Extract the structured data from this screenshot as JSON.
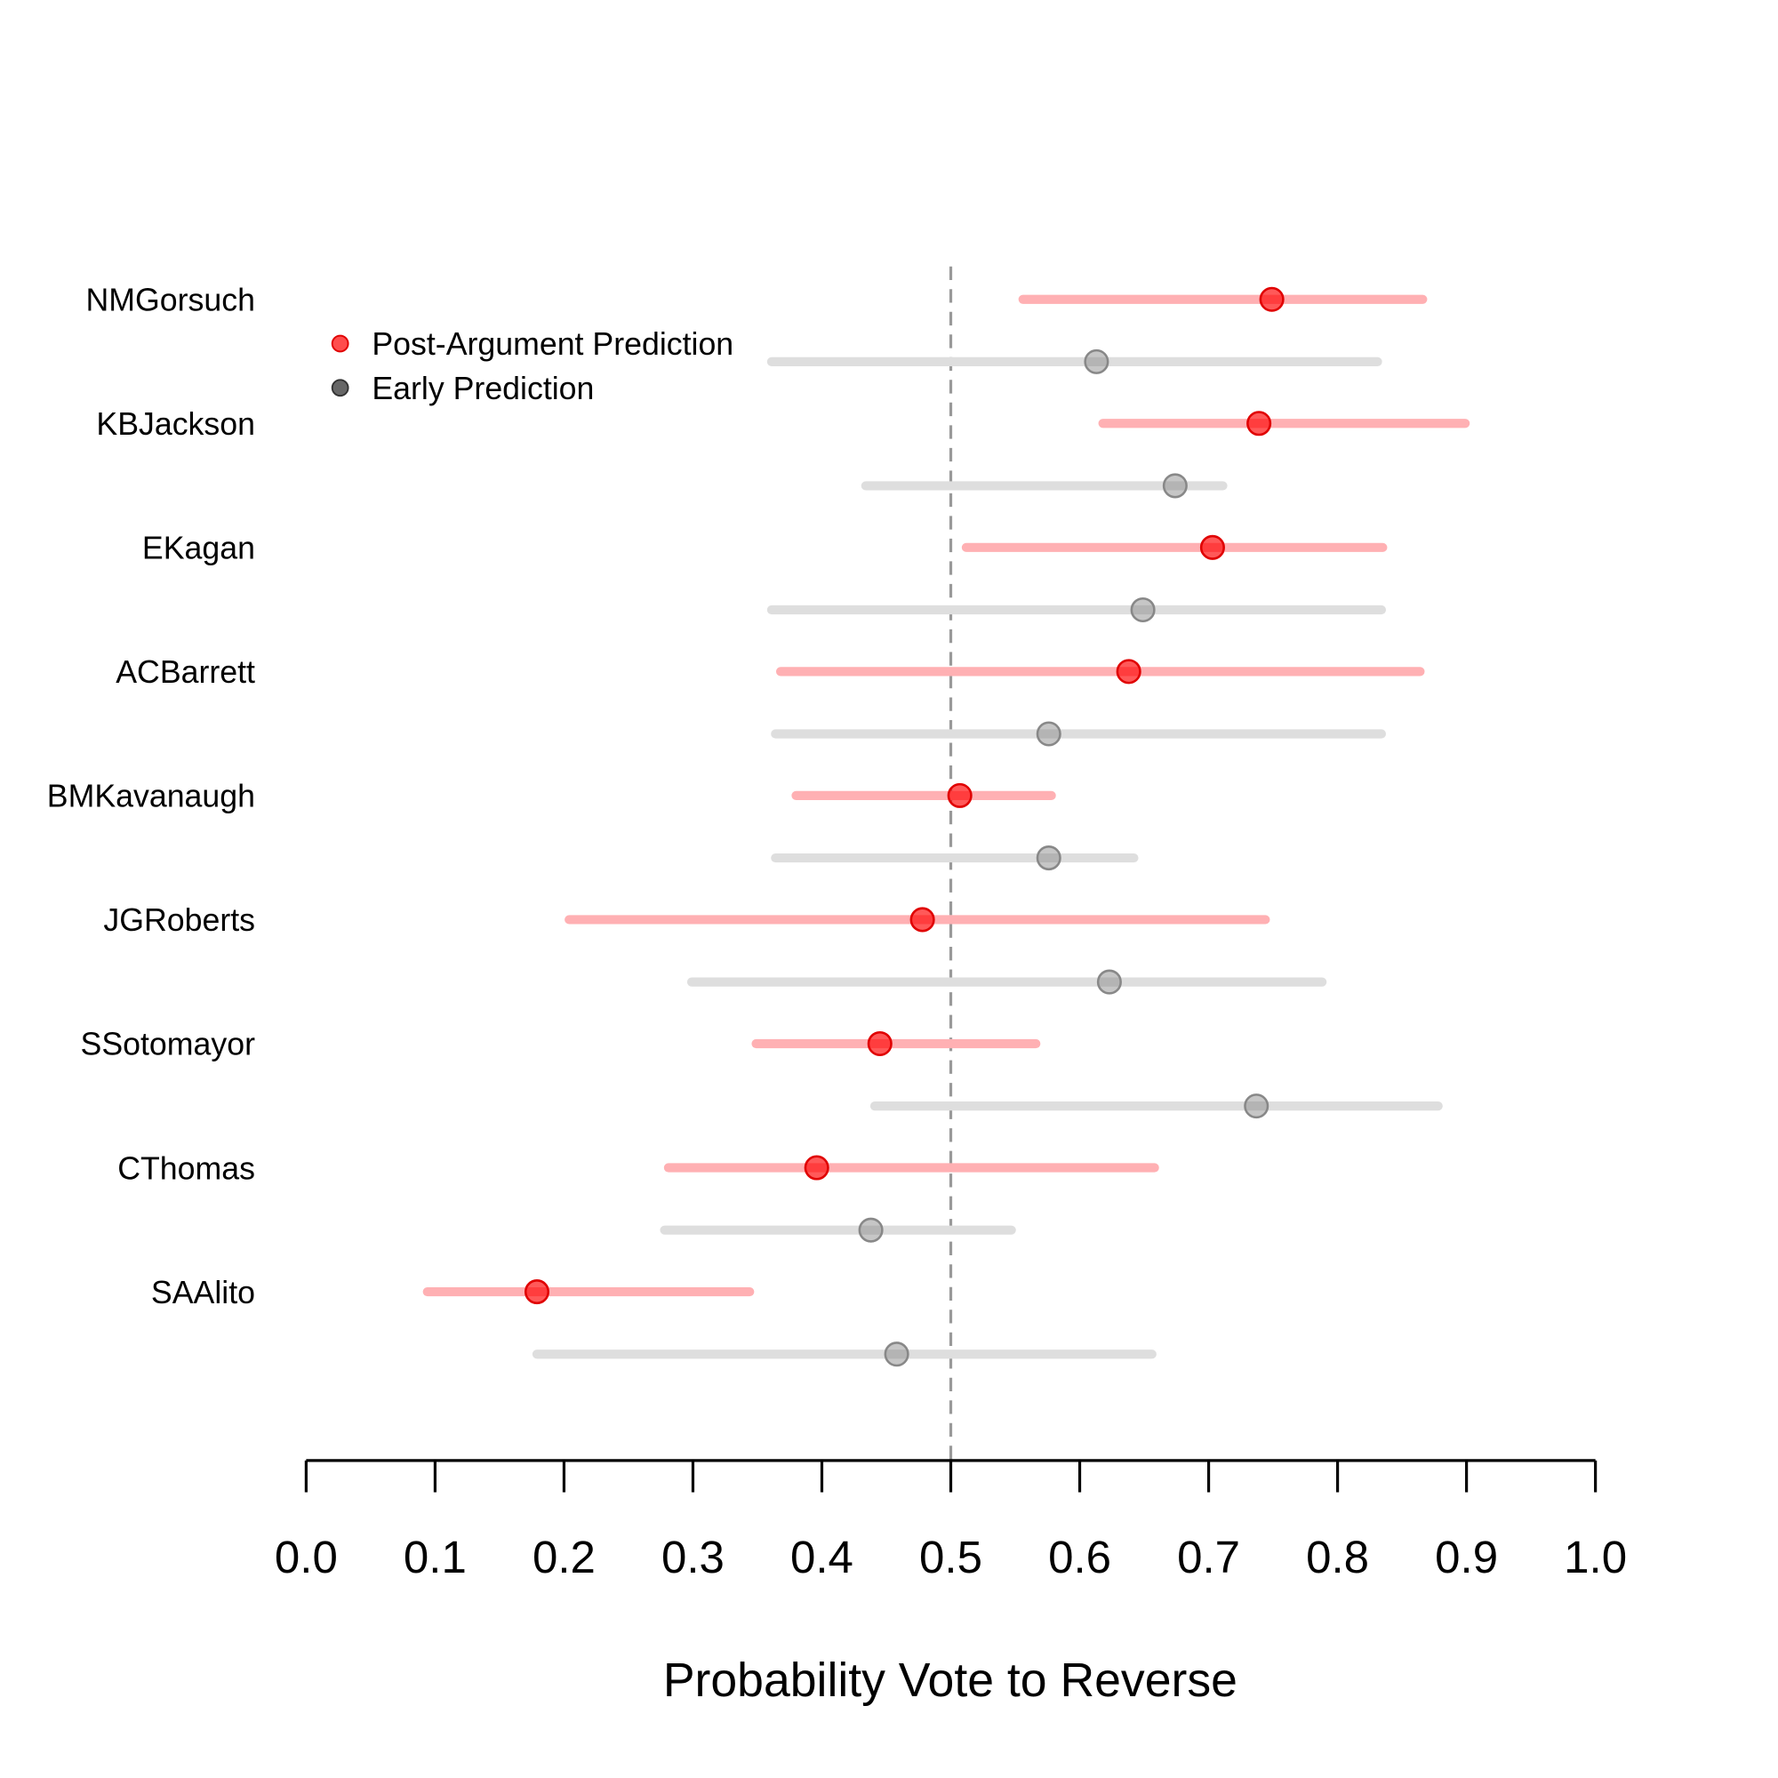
{
  "chart_data": {
    "type": "scatter",
    "subtype": "dot-and-interval",
    "title": "",
    "xlabel": "Probability Vote to Reverse",
    "ylabel": "",
    "xlim": [
      0,
      1
    ],
    "xticks": [
      "0.0",
      "0.1",
      "0.2",
      "0.3",
      "0.4",
      "0.5",
      "0.6",
      "0.7",
      "0.8",
      "0.9",
      "1.0"
    ],
    "reference_line": 0.5,
    "grid": false,
    "legend_placement": "top-left",
    "colors": {
      "post": "#ff0000",
      "early": "#808080",
      "post_interval": "#ffb0b3",
      "early_interval": "#dedede"
    },
    "legend": [
      {
        "name": "Post-Argument Prediction",
        "color": "#ff4d4d"
      },
      {
        "name": "Early Prediction",
        "color": "#666666"
      }
    ],
    "justices": [
      {
        "name": "NMGorsuch",
        "post": {
          "est": 0.749,
          "lo": 0.556,
          "hi": 0.866
        },
        "early": {
          "est": 0.613,
          "lo": 0.361,
          "hi": 0.831
        }
      },
      {
        "name": "KBJackson",
        "post": {
          "est": 0.739,
          "lo": 0.618,
          "hi": 0.899
        },
        "early": {
          "est": 0.674,
          "lo": 0.434,
          "hi": 0.711
        }
      },
      {
        "name": "EKagan",
        "post": {
          "est": 0.703,
          "lo": 0.512,
          "hi": 0.835
        },
        "early": {
          "est": 0.649,
          "lo": 0.361,
          "hi": 0.834
        }
      },
      {
        "name": "ACBarrett",
        "post": {
          "est": 0.638,
          "lo": 0.368,
          "hi": 0.864
        },
        "early": {
          "est": 0.576,
          "lo": 0.364,
          "hi": 0.834
        }
      },
      {
        "name": "BMKavanaugh",
        "post": {
          "est": 0.507,
          "lo": 0.38,
          "hi": 0.578
        },
        "early": {
          "est": 0.576,
          "lo": 0.364,
          "hi": 0.642
        }
      },
      {
        "name": "JGRoberts",
        "post": {
          "est": 0.478,
          "lo": 0.204,
          "hi": 0.744
        },
        "early": {
          "est": 0.623,
          "lo": 0.299,
          "hi": 0.788
        }
      },
      {
        "name": "SSotomayor",
        "post": {
          "est": 0.445,
          "lo": 0.349,
          "hi": 0.566
        },
        "early": {
          "est": 0.737,
          "lo": 0.441,
          "hi": 0.878
        }
      },
      {
        "name": "CThomas",
        "post": {
          "est": 0.396,
          "lo": 0.281,
          "hi": 0.658
        },
        "early": {
          "est": 0.438,
          "lo": 0.278,
          "hi": 0.547
        }
      },
      {
        "name": "SAAlito",
        "post": {
          "est": 0.179,
          "lo": 0.094,
          "hi": 0.344
        },
        "early": {
          "est": 0.458,
          "lo": 0.179,
          "hi": 0.656
        }
      }
    ]
  }
}
